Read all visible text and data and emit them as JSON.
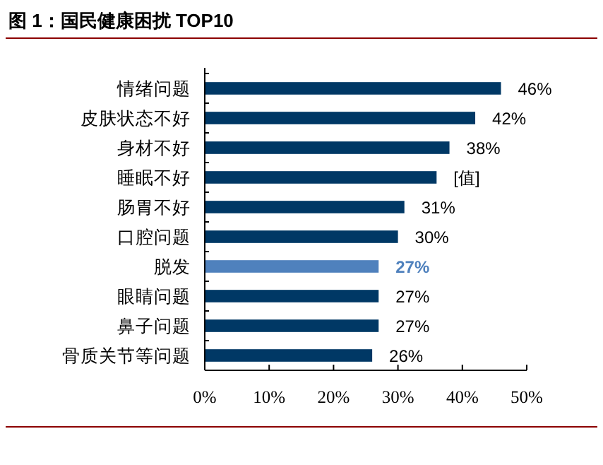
{
  "chart_data": {
    "type": "bar",
    "orientation": "horizontal",
    "title": "图 1：国民健康困扰 TOP10",
    "categories": [
      "情绪问题",
      "皮肤状态不好",
      "身材不好",
      "睡眠不好",
      "肠胃不好",
      "口腔问题",
      "脱发",
      "眼睛问题",
      "鼻子问题",
      "骨质关节等问题"
    ],
    "values": [
      46,
      42,
      38,
      36,
      31,
      30,
      27,
      27,
      27,
      26
    ],
    "colors": [
      "#003865",
      "#003865",
      "#003865",
      "#003865",
      "#003865",
      "#003865",
      "#4f81bd",
      "#003865",
      "#003865",
      "#003865"
    ],
    "value_labels": [
      "46%",
      "42%",
      "38%",
      "[值]",
      "31%",
      "30%",
      "27%",
      "27%",
      "27%",
      "26%"
    ],
    "xlim": [
      0,
      50
    ],
    "xticks": [
      {
        "value": 0,
        "label": "0%"
      },
      {
        "value": 10,
        "label": "10%"
      },
      {
        "value": 20,
        "label": "20%"
      },
      {
        "value": 30,
        "label": "30%"
      },
      {
        "value": 40,
        "label": "40%"
      },
      {
        "value": 50,
        "label": "50%"
      }
    ],
    "grid": false
  }
}
